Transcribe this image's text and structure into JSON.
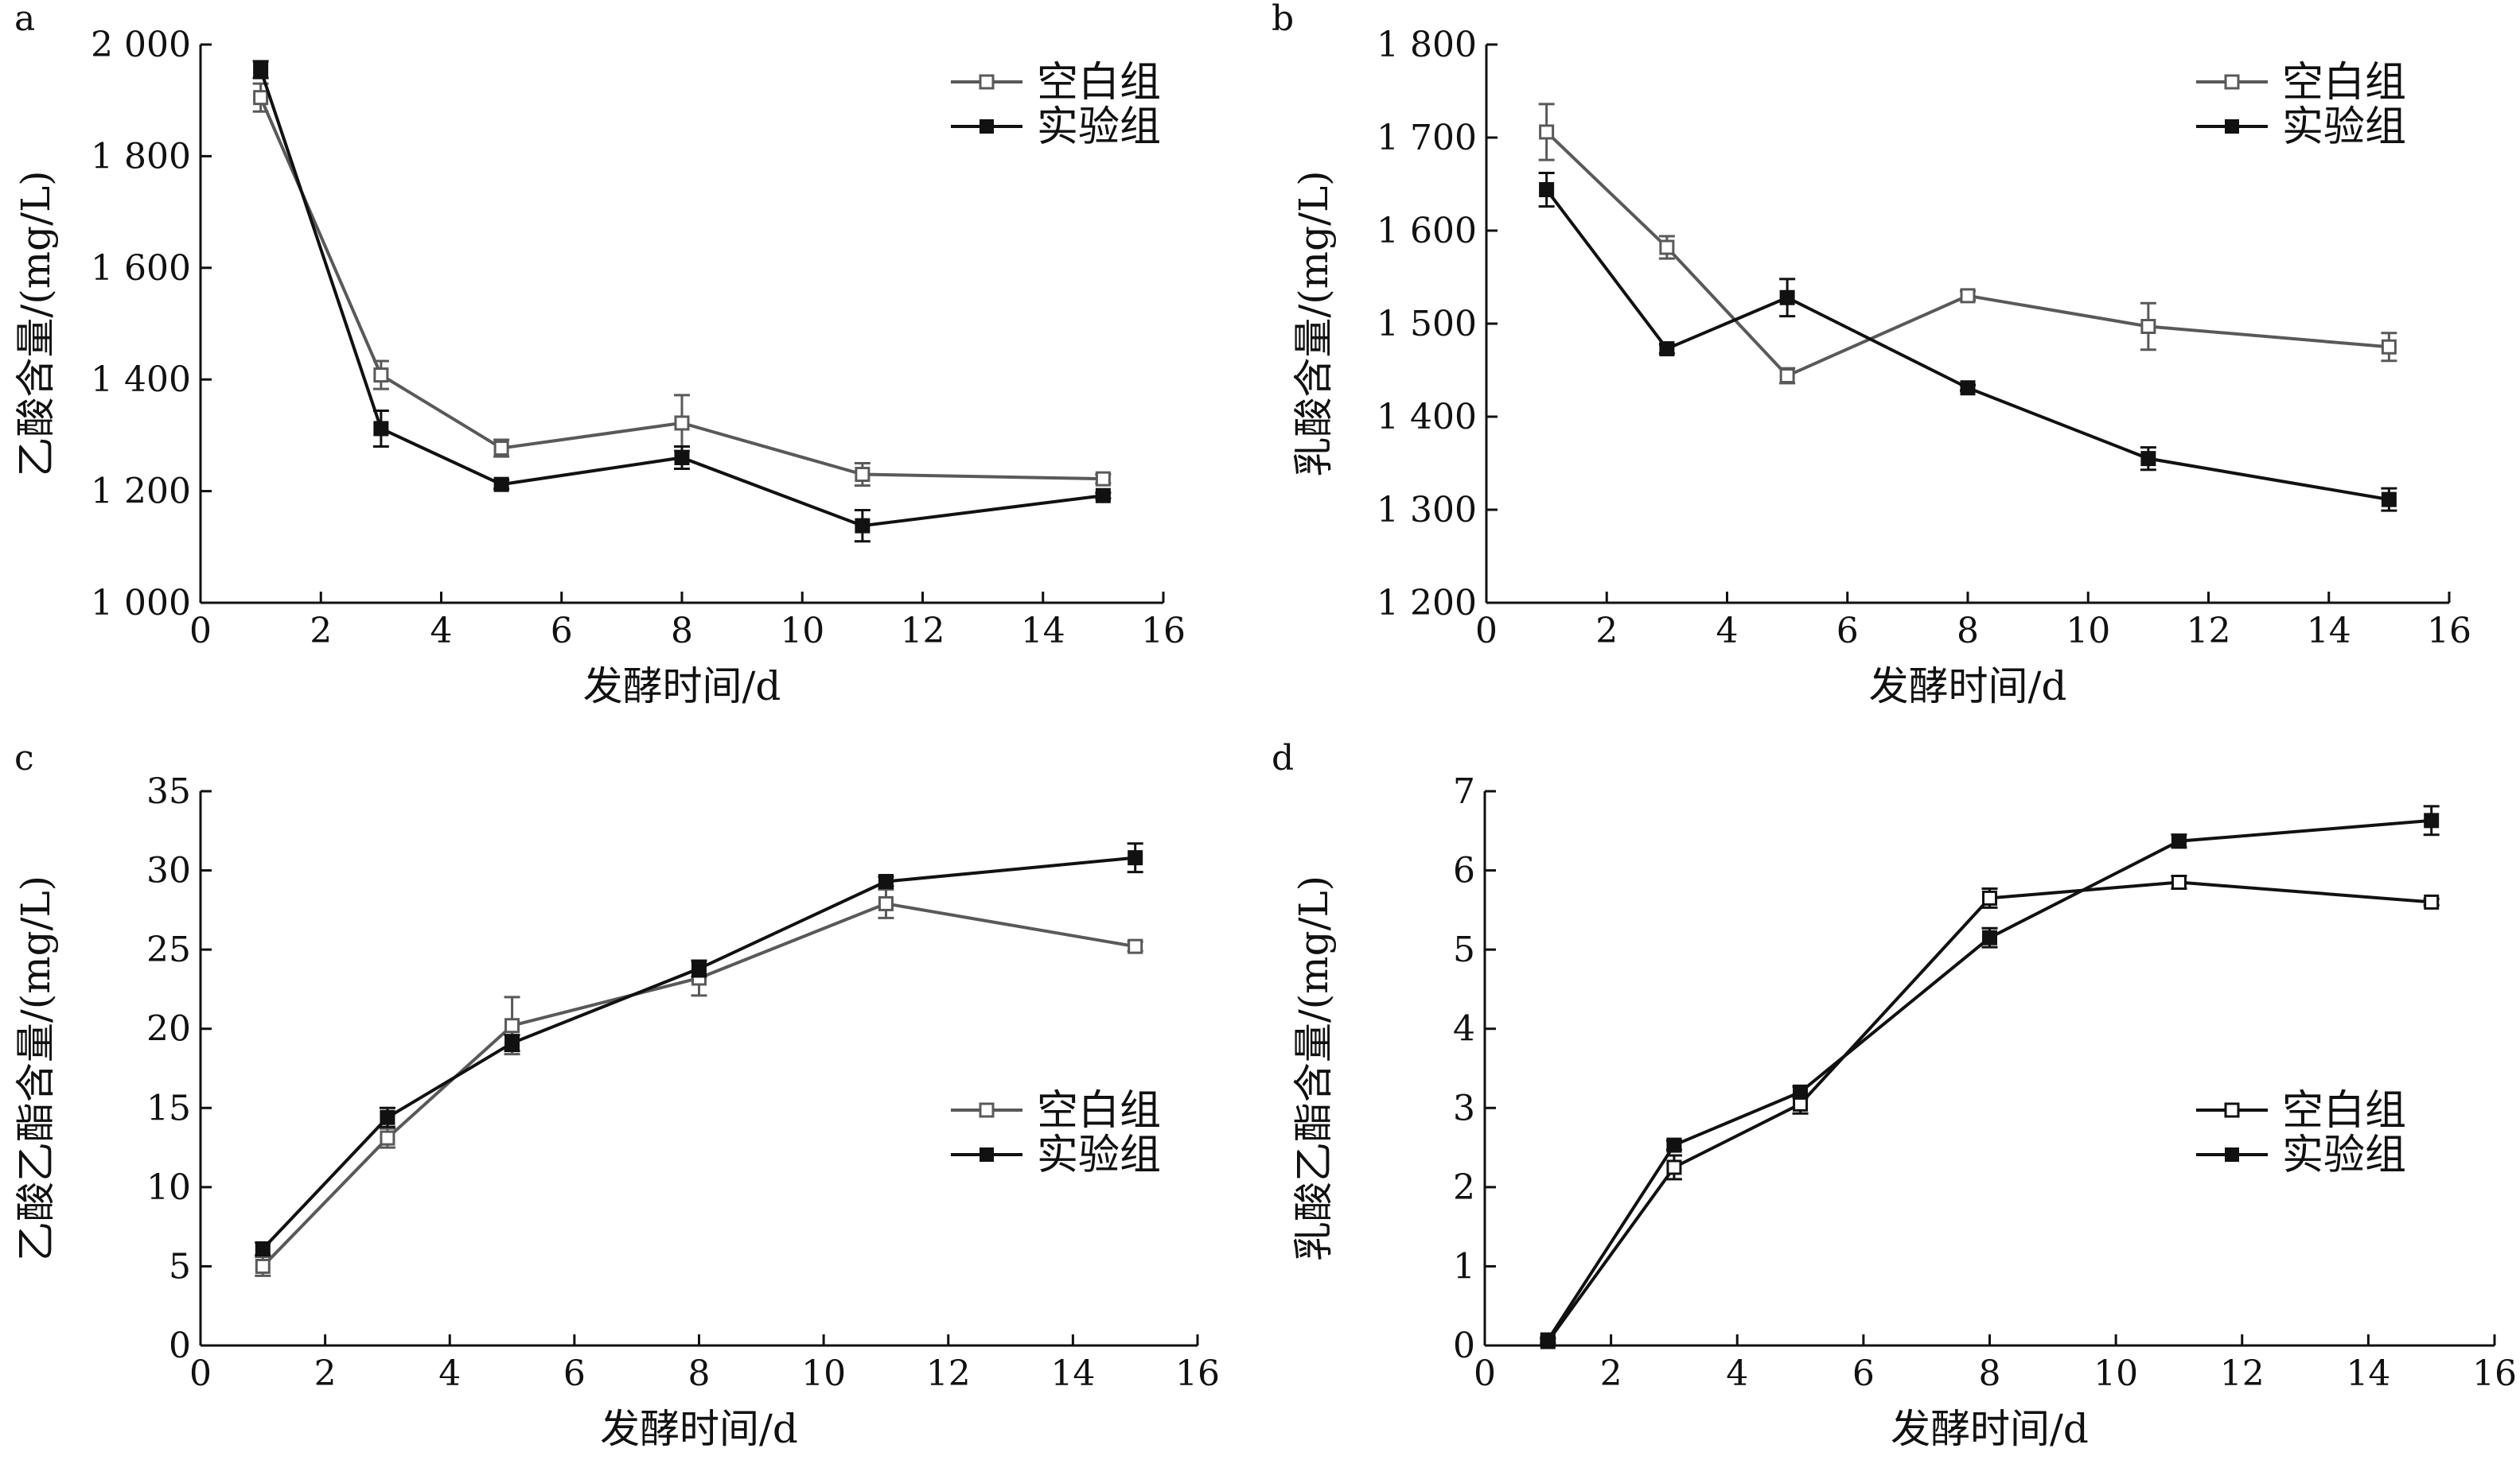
{
  "chart_data": [
    {
      "type": "line",
      "panel": "a",
      "xlabel": "发酵时间/d",
      "ylabel": "乙酸含量/(mg/L)",
      "xlim": [
        0,
        16
      ],
      "ylim": [
        1000,
        2000
      ],
      "xticks": [
        0,
        2,
        4,
        6,
        8,
        10,
        12,
        14,
        16
      ],
      "yticks": [
        1000,
        1200,
        1400,
        1600,
        1800,
        2000
      ],
      "ytick_labels": [
        "1 000",
        "1 200",
        "1 400",
        "1 600",
        "1 800",
        "2 000"
      ],
      "legend": "top-right",
      "grid": false,
      "x": [
        1,
        3,
        5,
        8,
        11,
        15
      ],
      "series": [
        {
          "name": "空白组",
          "color": "#595959",
          "marker": "open-square",
          "values": [
            1905,
            1408,
            1277,
            1322,
            1230,
            1222
          ],
          "error": [
            25,
            25,
            15,
            50,
            20,
            8
          ]
        },
        {
          "name": "实验组",
          "color": "#111111",
          "marker": "filled-square",
          "values": [
            1955,
            1312,
            1212,
            1260,
            1138,
            1192
          ],
          "error": [
            15,
            32,
            8,
            20,
            28,
            5
          ]
        }
      ]
    },
    {
      "type": "line",
      "panel": "b",
      "xlabel": "发酵时间/d",
      "ylabel": "乳酸含量/(mg/L)",
      "xlim": [
        0,
        16
      ],
      "ylim": [
        1200,
        1800
      ],
      "xticks": [
        0,
        2,
        4,
        6,
        8,
        10,
        12,
        14,
        16
      ],
      "yticks": [
        1200,
        1300,
        1400,
        1500,
        1600,
        1700,
        1800
      ],
      "ytick_labels": [
        "1 200",
        "1 300",
        "1 400",
        "1 500",
        "1 600",
        "1 700",
        "1 800"
      ],
      "legend": "top-right",
      "grid": false,
      "x": [
        1,
        3,
        5,
        8,
        11,
        15
      ],
      "series": [
        {
          "name": "空白组",
          "color": "#595959",
          "marker": "open-square",
          "values": [
            1706,
            1582,
            1444,
            1530,
            1497,
            1475
          ],
          "error": [
            30,
            12,
            8,
            5,
            25,
            15
          ]
        },
        {
          "name": "实验组",
          "color": "#111111",
          "marker": "filled-square",
          "values": [
            1644,
            1473,
            1528,
            1431,
            1355,
            1311
          ],
          "error": [
            18,
            5,
            20,
            3,
            12,
            12
          ]
        }
      ]
    },
    {
      "type": "line",
      "panel": "c",
      "xlabel": "发酵时间/d",
      "ylabel": "乙酸乙酯含量/(mg/L)",
      "xlim": [
        0,
        16
      ],
      "ylim": [
        0,
        35
      ],
      "xticks": [
        0,
        2,
        4,
        6,
        8,
        10,
        12,
        14,
        16
      ],
      "yticks": [
        0,
        5,
        10,
        15,
        20,
        25,
        30,
        35
      ],
      "ytick_labels": [
        "0",
        "5",
        "10",
        "15",
        "20",
        "25",
        "30",
        "35"
      ],
      "legend": "bottom-right",
      "grid": false,
      "x": [
        1,
        3,
        5,
        8,
        11,
        15
      ],
      "series": [
        {
          "name": "空白组",
          "color": "#595959",
          "marker": "open-square",
          "values": [
            5.0,
            13.1,
            20.2,
            23.2,
            27.9,
            25.2
          ],
          "error": [
            0.6,
            0.6,
            1.8,
            1.1,
            0.9,
            0.3
          ]
        },
        {
          "name": "实验组",
          "color": "#111111",
          "marker": "filled-square",
          "values": [
            6.1,
            14.4,
            19.1,
            23.8,
            29.3,
            30.8
          ],
          "error": [
            0.4,
            0.6,
            0.5,
            0.5,
            0.3,
            0.9
          ]
        }
      ]
    },
    {
      "type": "line",
      "panel": "d",
      "xlabel": "发酵时间/d",
      "ylabel": "乳酸乙酯含量/(mg/L)",
      "xlim": [
        0,
        16
      ],
      "ylim": [
        0,
        7
      ],
      "xticks": [
        0,
        2,
        4,
        6,
        8,
        10,
        12,
        14,
        16
      ],
      "yticks": [
        0,
        1,
        2,
        3,
        4,
        5,
        6,
        7
      ],
      "ytick_labels": [
        "0",
        "1",
        "2",
        "3",
        "4",
        "5",
        "6",
        "7"
      ],
      "legend": "bottom-right",
      "grid": false,
      "x": [
        1,
        3,
        5,
        8,
        11,
        15
      ],
      "series": [
        {
          "name": "空白组",
          "color": "#111111",
          "marker": "open-square",
          "values": [
            0.05,
            2.25,
            3.05,
            5.65,
            5.85,
            5.6
          ],
          "error": [
            0.03,
            0.15,
            0.12,
            0.12,
            0.08,
            0.04
          ]
        },
        {
          "name": "实验组",
          "color": "#111111",
          "marker": "filled-square",
          "values": [
            0.07,
            2.53,
            3.2,
            5.15,
            6.37,
            6.63
          ],
          "error": [
            0.03,
            0.06,
            0.07,
            0.12,
            0.08,
            0.18
          ]
        }
      ]
    }
  ]
}
